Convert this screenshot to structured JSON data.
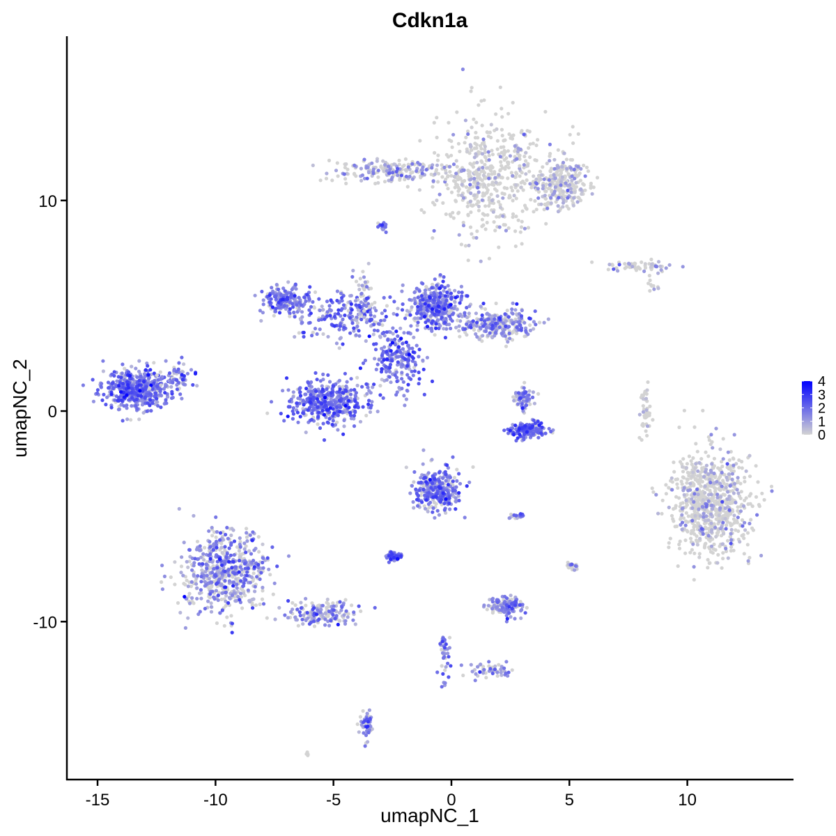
{
  "chart_data": {
    "type": "scatter",
    "title": "Cdkn1a",
    "xlabel": "umapNC_1",
    "ylabel": "umapNC_2",
    "xlim": [
      -16.3,
      14.5
    ],
    "ylim": [
      -17.5,
      17.8
    ],
    "x_ticks": [
      -15,
      -10,
      -5,
      0,
      5,
      10
    ],
    "x_tick_labels": [
      "-15",
      "-10",
      "-5",
      "0",
      "5",
      "10"
    ],
    "y_ticks": [
      -10,
      0,
      10
    ],
    "y_tick_labels": [
      "-10",
      "0",
      "10"
    ],
    "grid": false,
    "legend": {
      "placement": "right",
      "variable": "expression",
      "range": [
        0,
        4
      ],
      "ticks": [
        0,
        1,
        2,
        3,
        4
      ],
      "tick_labels": [
        "0",
        "1",
        "2",
        "3",
        "4"
      ],
      "color_low": "#d3d3d3",
      "color_high": "#0000ff"
    },
    "clusters": [
      {
        "name": "c1",
        "cx": 1.6,
        "cy": 11.2,
        "sx": 1.9,
        "sy": 2.4,
        "n": 500,
        "expr": 0.25
      },
      {
        "name": "c2",
        "cx": -2.2,
        "cy": 11.4,
        "sx": 2.4,
        "sy": 0.45,
        "n": 200,
        "expr": 0.8
      },
      {
        "name": "c3",
        "cx": 4.6,
        "cy": 10.8,
        "sx": 1.1,
        "sy": 1.0,
        "n": 260,
        "expr": 0.6
      },
      {
        "name": "c4",
        "cx": -2.9,
        "cy": 8.8,
        "sx": 0.15,
        "sy": 0.2,
        "n": 20,
        "expr": 1.5
      },
      {
        "name": "c5",
        "cx": 8.2,
        "cy": 6.9,
        "sx": 1.3,
        "sy": 0.2,
        "n": 60,
        "expr": 0.6
      },
      {
        "name": "c6",
        "cx": 8.5,
        "cy": 6.0,
        "sx": 0.3,
        "sy": 0.25,
        "n": 10,
        "expr": 0.3
      },
      {
        "name": "c7",
        "cx": -13.3,
        "cy": 1.0,
        "sx": 1.2,
        "sy": 0.8,
        "n": 500,
        "expr": 1.6
      },
      {
        "name": "c8",
        "cx": -11.7,
        "cy": 1.6,
        "sx": 0.6,
        "sy": 0.5,
        "n": 60,
        "expr": 1.4
      },
      {
        "name": "c9",
        "cx": -7.0,
        "cy": 5.2,
        "sx": 0.8,
        "sy": 0.6,
        "n": 170,
        "expr": 1.6
      },
      {
        "name": "c10",
        "cx": -4.5,
        "cy": 4.5,
        "sx": 1.8,
        "sy": 0.9,
        "n": 200,
        "expr": 1.6
      },
      {
        "name": "c11",
        "cx": -5.2,
        "cy": 0.4,
        "sx": 1.3,
        "sy": 0.9,
        "n": 420,
        "expr": 1.6
      },
      {
        "name": "c12",
        "cx": -2.3,
        "cy": 2.5,
        "sx": 0.9,
        "sy": 1.3,
        "n": 220,
        "expr": 1.7
      },
      {
        "name": "c13",
        "cx": -0.6,
        "cy": 5.0,
        "sx": 0.9,
        "sy": 0.9,
        "n": 360,
        "expr": 1.5
      },
      {
        "name": "c14",
        "cx": 1.8,
        "cy": 4.1,
        "sx": 1.3,
        "sy": 0.6,
        "n": 260,
        "expr": 1.2
      },
      {
        "name": "c15",
        "cx": -3.8,
        "cy": 5.6,
        "sx": 0.35,
        "sy": 1.2,
        "n": 40,
        "expr": 1.2
      },
      {
        "name": "c16",
        "cx": 3.2,
        "cy": -0.9,
        "sx": 0.7,
        "sy": 0.3,
        "n": 160,
        "expr": 1.8
      },
      {
        "name": "c17",
        "cx": 3.1,
        "cy": 0.6,
        "sx": 0.35,
        "sy": 0.5,
        "n": 70,
        "expr": 1.3
      },
      {
        "name": "c18",
        "cx": 8.2,
        "cy": 0.0,
        "sx": 0.2,
        "sy": 1.0,
        "n": 40,
        "expr": 0.2
      },
      {
        "name": "c19",
        "cx": 11.0,
        "cy": -4.4,
        "sx": 1.35,
        "sy": 1.95,
        "n": 800,
        "expr": 0.35
      },
      {
        "name": "c20",
        "cx": -0.6,
        "cy": -3.7,
        "sx": 0.8,
        "sy": 0.9,
        "n": 320,
        "expr": 1.5
      },
      {
        "name": "c21",
        "cx": -2.4,
        "cy": -6.9,
        "sx": 0.3,
        "sy": 0.2,
        "n": 70,
        "expr": 1.7
      },
      {
        "name": "c22",
        "cx": 2.8,
        "cy": -5.0,
        "sx": 0.25,
        "sy": 0.12,
        "n": 20,
        "expr": 1.5
      },
      {
        "name": "c23",
        "cx": -9.6,
        "cy": -7.7,
        "sx": 1.5,
        "sy": 1.6,
        "n": 600,
        "expr": 1.2
      },
      {
        "name": "c24",
        "cx": -5.5,
        "cy": -9.6,
        "sx": 1.2,
        "sy": 0.5,
        "n": 160,
        "expr": 1.2
      },
      {
        "name": "c25",
        "cx": 2.3,
        "cy": -9.3,
        "sx": 0.6,
        "sy": 0.4,
        "n": 130,
        "expr": 1.3
      },
      {
        "name": "c26",
        "cx": 5.1,
        "cy": -7.4,
        "sx": 0.2,
        "sy": 0.2,
        "n": 20,
        "expr": 1.0
      },
      {
        "name": "c27",
        "cx": -3.6,
        "cy": -14.9,
        "sx": 0.25,
        "sy": 0.6,
        "n": 50,
        "expr": 1.4
      },
      {
        "name": "c28",
        "cx": -0.3,
        "cy": -11.6,
        "sx": 0.2,
        "sy": 1.0,
        "n": 40,
        "expr": 1.3
      },
      {
        "name": "c29",
        "cx": 1.7,
        "cy": -12.3,
        "sx": 0.8,
        "sy": 0.35,
        "n": 50,
        "expr": 1.3
      },
      {
        "name": "c30",
        "cx": -6.1,
        "cy": -16.3,
        "sx": 0.15,
        "sy": 0.1,
        "n": 6,
        "expr": 0.3
      }
    ]
  }
}
